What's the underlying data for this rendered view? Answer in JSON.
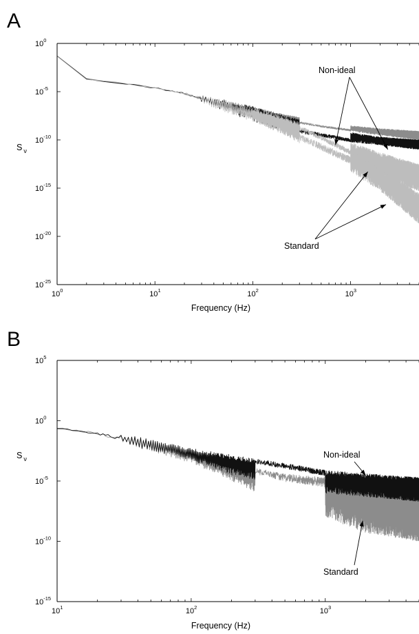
{
  "chart_data": [
    {
      "panel": "A",
      "type": "line",
      "xscale": "log",
      "yscale": "log",
      "xlim": [
        1,
        5000
      ],
      "ylim": [
        1e-25,
        1
      ],
      "xlabel": "Frequency (Hz)",
      "ylabel_base": "S",
      "ylabel_sub": "ν",
      "x_ticks": [
        {
          "base": "10",
          "exp": "0",
          "value": 1
        },
        {
          "base": "10",
          "exp": "1",
          "value": 10
        },
        {
          "base": "10",
          "exp": "2",
          "value": 100
        },
        {
          "base": "10",
          "exp": "3",
          "value": 1000
        }
      ],
      "y_ticks": [
        {
          "base": "10",
          "exp": "0",
          "value": 1
        },
        {
          "base": "10",
          "exp": "-5",
          "value": 1e-05
        },
        {
          "base": "10",
          "exp": "-10",
          "value": 1e-10
        },
        {
          "base": "10",
          "exp": "-15",
          "value": 1e-15
        },
        {
          "base": "10",
          "exp": "-20",
          "value": 1e-20
        },
        {
          "base": "10",
          "exp": "-25",
          "value": 1e-25
        }
      ],
      "series": [
        {
          "color": "#8c8c8c",
          "envelope_x": [
            1,
            2,
            5,
            10,
            20,
            50,
            100,
            200,
            500,
            1000,
            2000,
            5000
          ],
          "upper": [
            0.05,
            0.0002,
            8e-05,
            3e-05,
            1e-05,
            1.5e-06,
            3e-07,
            5e-08,
            8e-09,
            3e-09,
            1.5e-09,
            8e-10
          ],
          "lower": [
            0.05,
            0.0002,
            6e-05,
            2e-05,
            5e-06,
            2e-07,
            5e-08,
            1e-08,
            2e-09,
            8e-10,
            3e-10,
            1e-10
          ]
        },
        {
          "color": "#111111",
          "envelope_x": [
            1,
            2,
            5,
            10,
            20,
            50,
            100,
            200,
            500,
            1000,
            2000,
            5000
          ],
          "upper": [
            0.05,
            0.0002,
            8e-05,
            3e-05,
            1e-05,
            1.5e-06,
            3e-07,
            4e-08,
            3e-09,
            6e-10,
            2e-10,
            1e-10
          ],
          "lower": [
            0.05,
            0.0002,
            6e-05,
            2e-05,
            4e-06,
            1e-07,
            8e-09,
            1e-09,
            2e-10,
            6e-11,
            3e-11,
            1e-11
          ]
        },
        {
          "color": "#bdbdbd",
          "envelope_x": [
            1,
            2,
            5,
            10,
            20,
            50,
            100,
            200,
            500,
            1000,
            2000,
            5000
          ],
          "upper": [
            0.05,
            0.0002,
            8e-05,
            3e-05,
            1e-05,
            1e-06,
            2e-07,
            3e-08,
            1e-09,
            6e-11,
            5e-12,
            3e-13
          ],
          "lower": [
            0.05,
            0.0002,
            6e-05,
            2e-05,
            4e-06,
            8e-08,
            8e-09,
            6e-10,
            8e-12,
            3e-13,
            1e-14,
            5e-16
          ]
        },
        {
          "color": "#bdbdbd",
          "envelope_x": [
            100,
            200,
            500,
            1000,
            2000,
            5000
          ],
          "upper": [
            2e-07,
            2e-08,
            3e-10,
            1e-11,
            1e-13,
            3e-16
          ],
          "lower": [
            8e-09,
            4e-10,
            3e-12,
            5e-14,
            5e-16,
            2e-19
          ]
        }
      ],
      "annotations": [
        {
          "text": "Non-ideal",
          "text_at": [
            250,
            1.4e-05
          ],
          "arrows_to": [
            [
              700,
              3e-11
            ],
            [
              2400,
              1e-11
            ]
          ]
        },
        {
          "text": "Standard",
          "text_at": [
            160,
            8e-22
          ],
          "arrows_to": [
            [
              1500,
              5e-14
            ],
            [
              2300,
              2e-17
            ]
          ]
        }
      ]
    },
    {
      "panel": "B",
      "type": "line",
      "xscale": "log",
      "yscale": "log",
      "xlim": [
        10,
        5000
      ],
      "ylim": [
        1e-15,
        100000.0
      ],
      "xlabel": "Frequency (Hz)",
      "ylabel_base": "S",
      "ylabel_sub": "ν",
      "x_ticks": [
        {
          "base": "10",
          "exp": "1",
          "value": 10
        },
        {
          "base": "10",
          "exp": "2",
          "value": 100
        },
        {
          "base": "10",
          "exp": "3",
          "value": 1000
        }
      ],
      "y_ticks": [
        {
          "base": "10",
          "exp": "5",
          "value": 100000.0
        },
        {
          "base": "10",
          "exp": "0",
          "value": 1
        },
        {
          "base": "10",
          "exp": "-5",
          "value": 1e-05
        },
        {
          "base": "10",
          "exp": "-10",
          "value": 1e-10
        },
        {
          "base": "10",
          "exp": "-15",
          "value": 1e-15
        }
      ],
      "series": [
        {
          "color": "#8c8c8c",
          "envelope_x": [
            10,
            20,
            50,
            100,
            200,
            500,
            1000,
            2000,
            5000
          ],
          "upper": [
            0.3,
            0.15,
            0.02,
            0.003,
            0.0003,
            4e-05,
            2e-05,
            5e-06,
            1e-06
          ],
          "lower": [
            0.2,
            0.05,
            0.003,
            0.0003,
            1e-05,
            1e-07,
            1e-08,
            5e-10,
            1e-10
          ]
        },
        {
          "color": "#111111",
          "envelope_x": [
            10,
            20,
            50,
            100,
            200,
            500,
            1000,
            2000,
            5000
          ],
          "upper": [
            0.3,
            0.15,
            0.03,
            0.005,
            0.0015,
            0.0003,
            8e-05,
            4e-05,
            2e-05
          ],
          "lower": [
            0.2,
            0.05,
            0.003,
            0.0005,
            3e-05,
            5e-06,
            1e-06,
            5e-07,
            2e-07
          ]
        }
      ],
      "annotations": [
        {
          "text": "Non-ideal",
          "text_at": [
            1800,
            0.01
          ],
          "arrows_to": [
            [
              2000,
              3e-05
            ]
          ]
        },
        {
          "text": "Standard",
          "text_at": [
            1800,
            3e-12
          ],
          "arrows_to": [
            [
              1900,
              5e-09
            ]
          ]
        }
      ]
    }
  ]
}
